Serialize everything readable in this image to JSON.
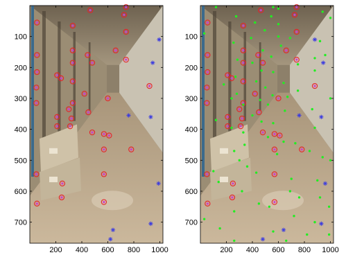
{
  "colors": {
    "red_circle": "#e8202a",
    "magenta_fill": "#d03cc8",
    "blue_star": "#3a3ae0",
    "green_dot": "#22ee22",
    "photo_wall_left": "#9e8f76",
    "photo_floor": "#b8a48a",
    "photo_boxes": "#cfc2a8"
  },
  "chart_data": [
    {
      "type": "scatter",
      "panel": "left",
      "x_ticks": [
        "200",
        "400",
        "600",
        "800",
        "1000"
      ],
      "y_ticks": [
        "100",
        "200",
        "300",
        "400",
        "500",
        "600",
        "700"
      ],
      "xlim": [
        0,
        1024
      ],
      "ylim": [
        0,
        768
      ],
      "y_inverted": true,
      "grid": false,
      "background": "photo",
      "series": [
        {
          "marker": "red-circle-with-magenta-dot",
          "points": [
            [
              55,
              55
            ],
            [
              465,
              15
            ],
            [
              740,
              5
            ],
            [
              725,
              30
            ],
            [
              740,
              85
            ],
            [
              330,
              65
            ],
            [
              55,
              160
            ],
            [
              330,
              145
            ],
            [
              445,
              160
            ],
            [
              660,
              145
            ],
            [
              740,
              175
            ],
            [
              55,
              215
            ],
            [
              330,
              185
            ],
            [
              480,
              185
            ],
            [
              210,
              225
            ],
            [
              240,
              235
            ],
            [
              50,
              265
            ],
            [
              330,
              245
            ],
            [
              420,
              285
            ],
            [
              600,
              300
            ],
            [
              920,
              260
            ],
            [
              50,
              315
            ],
            [
              330,
              315
            ],
            [
              300,
              335
            ],
            [
              450,
              345
            ],
            [
              320,
              365
            ],
            [
              210,
              360
            ],
            [
              210,
              390
            ],
            [
              310,
              390
            ],
            [
              480,
              410
            ],
            [
              570,
              415
            ],
            [
              610,
              420
            ],
            [
              780,
              465
            ],
            [
              570,
              465
            ],
            [
              50,
              545
            ],
            [
              570,
              545
            ],
            [
              250,
              575
            ],
            [
              245,
              620
            ],
            [
              570,
              635
            ],
            [
              55,
              640
            ]
          ]
        },
        {
          "marker": "blue-star",
          "points": [
            [
              995,
              110
            ],
            [
              945,
              185
            ],
            [
              760,
              355
            ],
            [
              930,
              360
            ],
            [
              990,
              575
            ],
            [
              930,
              705
            ],
            [
              640,
              725
            ],
            [
              620,
              755
            ]
          ]
        }
      ]
    },
    {
      "type": "scatter",
      "panel": "right",
      "x_ticks": [
        "200",
        "400",
        "600",
        "800",
        "1000"
      ],
      "y_ticks": [
        "100",
        "200",
        "300",
        "400",
        "500",
        "600",
        "700"
      ],
      "xlim": [
        0,
        1024
      ],
      "ylim": [
        0,
        768
      ],
      "y_inverted": true,
      "grid": false,
      "background": "photo",
      "series": [
        {
          "marker": "red-circle-with-magenta-dot",
          "points": [
            [
              55,
              55
            ],
            [
              465,
              15
            ],
            [
              740,
              5
            ],
            [
              725,
              30
            ],
            [
              740,
              85
            ],
            [
              330,
              65
            ],
            [
              55,
              160
            ],
            [
              330,
              145
            ],
            [
              445,
              160
            ],
            [
              660,
              145
            ],
            [
              740,
              175
            ],
            [
              55,
              215
            ],
            [
              330,
              185
            ],
            [
              480,
              185
            ],
            [
              210,
              225
            ],
            [
              240,
              235
            ],
            [
              50,
              265
            ],
            [
              330,
              245
            ],
            [
              420,
              285
            ],
            [
              600,
              300
            ],
            [
              880,
              260
            ],
            [
              50,
              315
            ],
            [
              330,
              315
            ],
            [
              300,
              335
            ],
            [
              450,
              345
            ],
            [
              320,
              365
            ],
            [
              210,
              360
            ],
            [
              210,
              390
            ],
            [
              310,
              390
            ],
            [
              480,
              410
            ],
            [
              570,
              415
            ],
            [
              610,
              420
            ],
            [
              780,
              465
            ],
            [
              570,
              465
            ],
            [
              50,
              545
            ],
            [
              570,
              545
            ],
            [
              250,
              575
            ],
            [
              245,
              620
            ],
            [
              570,
              635
            ],
            [
              55,
              640
            ]
          ]
        },
        {
          "marker": "blue-star",
          "points": [
            [
              880,
              110
            ],
            [
              945,
              185
            ],
            [
              760,
              355
            ],
            [
              930,
              360
            ],
            [
              960,
              575
            ],
            [
              930,
              705
            ],
            [
              640,
              725
            ],
            [
              480,
              755
            ]
          ]
        },
        {
          "marker": "green-dot",
          "points": [
            [
              120,
              5
            ],
            [
              560,
              5
            ],
            [
              600,
              10
            ],
            [
              940,
              20
            ],
            [
              1000,
              40
            ],
            [
              275,
              35
            ],
            [
              545,
              35
            ],
            [
              420,
              55
            ],
            [
              600,
              60
            ],
            [
              495,
              80
            ],
            [
              30,
              90
            ],
            [
              390,
              105
            ],
            [
              600,
              100
            ],
            [
              690,
              105
            ],
            [
              920,
              115
            ],
            [
              255,
              120
            ],
            [
              620,
              130
            ],
            [
              480,
              145
            ],
            [
              545,
              165
            ],
            [
              880,
              170
            ],
            [
              960,
              160
            ],
            [
              285,
              175
            ],
            [
              400,
              185
            ],
            [
              750,
              190
            ],
            [
              470,
              210
            ],
            [
              560,
              215
            ],
            [
              880,
              210
            ],
            [
              270,
              230
            ],
            [
              430,
              245
            ],
            [
              640,
              250
            ],
            [
              180,
              255
            ],
            [
              500,
              265
            ],
            [
              750,
              275
            ],
            [
              280,
              285
            ],
            [
              555,
              290
            ],
            [
              670,
              295
            ],
            [
              240,
              300
            ],
            [
              460,
              305
            ],
            [
              1000,
              300
            ],
            [
              330,
              320
            ],
            [
              520,
              320
            ],
            [
              860,
              335
            ],
            [
              650,
              340
            ],
            [
              400,
              355
            ],
            [
              120,
              370
            ],
            [
              470,
              375
            ],
            [
              560,
              380
            ],
            [
              240,
              395
            ],
            [
              880,
              395
            ],
            [
              330,
              410
            ],
            [
              520,
              425
            ],
            [
              640,
              440
            ],
            [
              730,
              445
            ],
            [
              340,
              450
            ],
            [
              260,
              470
            ],
            [
              590,
              480
            ],
            [
              840,
              470
            ],
            [
              940,
              490
            ],
            [
              1000,
              500
            ],
            [
              300,
              500
            ],
            [
              360,
              520
            ],
            [
              100,
              535
            ],
            [
              430,
              540
            ],
            [
              700,
              560
            ],
            [
              900,
              565
            ],
            [
              140,
              570
            ],
            [
              320,
              600
            ],
            [
              690,
              600
            ],
            [
              760,
              620
            ],
            [
              920,
              620
            ],
            [
              450,
              640
            ],
            [
              530,
              650
            ],
            [
              990,
              650
            ],
            [
              260,
              665
            ],
            [
              720,
              680
            ],
            [
              880,
              700
            ],
            [
              30,
              690
            ],
            [
              150,
              720
            ],
            [
              560,
              730
            ],
            [
              820,
              740
            ],
            [
              990,
              740
            ],
            [
              260,
              760
            ],
            [
              660,
              760
            ]
          ]
        }
      ]
    }
  ]
}
